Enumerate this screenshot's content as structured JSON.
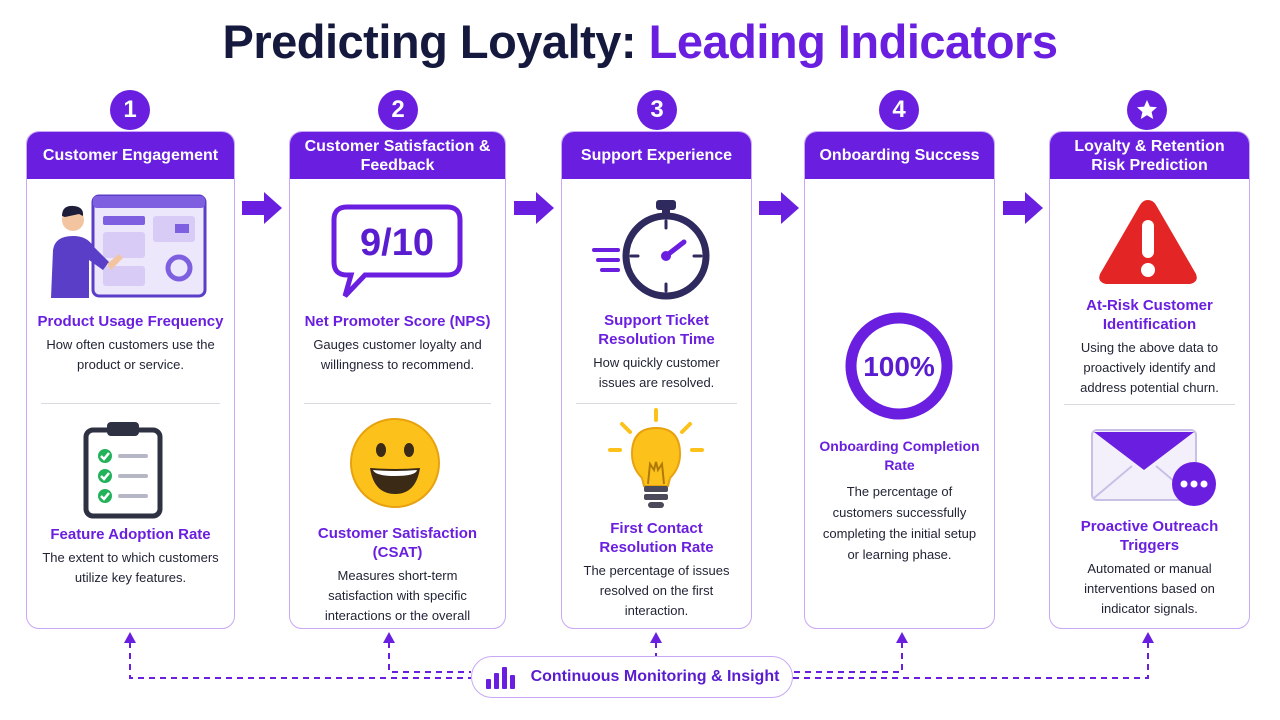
{
  "title": {
    "main": "Predicting Loyalty: ",
    "accent": "Leading Indicators"
  },
  "steps": [
    {
      "badge": "1",
      "header": "Customer Engagement",
      "metrics": [
        {
          "title": "Product Usage Frequency",
          "desc": "How often customers use the product or service."
        },
        {
          "title": "Feature Adoption Rate",
          "desc": "The extent to which customers utilize key features."
        }
      ]
    },
    {
      "badge": "2",
      "header": "Customer Satisfaction & Feedback",
      "score_text": "9/10",
      "metrics": [
        {
          "title": "Net Promoter Score (NPS)",
          "desc": "Gauges customer loyalty and willingness to recommend."
        },
        {
          "title": "Customer Satisfaction (CSAT)",
          "desc": "Measures short-term satisfaction with specific interactions or the overall product."
        }
      ]
    },
    {
      "badge": "3",
      "header": "Support Experience",
      "metrics": [
        {
          "title": "Support Ticket Resolution Time",
          "desc": "How quickly customer issues are resolved."
        },
        {
          "title": "First Contact Resolution Rate",
          "desc": "The percentage of issues resolved on the first interaction."
        }
      ]
    },
    {
      "badge": "4",
      "header": "Onboarding Success",
      "ring_text": "100%",
      "ring_value": 1.0,
      "metrics": [
        {
          "title": "Onboarding Completion Rate",
          "desc": "The percentage of customers successfully completing the initial setup or learning phase."
        }
      ]
    },
    {
      "badge_icon": "star-icon",
      "header": "Loyalty & Retention Risk Prediction",
      "metrics": [
        {
          "title": "At-Risk Customer Identification",
          "desc": "Using the above data to proactively identify and address potential churn."
        },
        {
          "title": "Proactive Outreach Triggers",
          "desc": "Automated or manual interventions based on indicator signals."
        }
      ]
    }
  ],
  "footer": {
    "label": "Continuous Monitoring & Insight",
    "icon": "bar-chart-icon"
  },
  "icons": {
    "step1_top": "dashboard-user-icon",
    "step1_bottom": "clipboard-checklist-icon",
    "step2_top": "rating-chat-bubble-icon",
    "step2_bottom": "smiley-face-icon",
    "step3_top": "stopwatch-icon",
    "step3_bottom": "lightbulb-icon",
    "step4_top": "progress-ring-icon",
    "step5_top": "warning-triangle-icon",
    "step5_bottom": "envelope-icon"
  },
  "colors": {
    "primary": "#6a1fe0",
    "title": "#14193d",
    "warning": "#e42525",
    "border": "#c9a8f5"
  }
}
